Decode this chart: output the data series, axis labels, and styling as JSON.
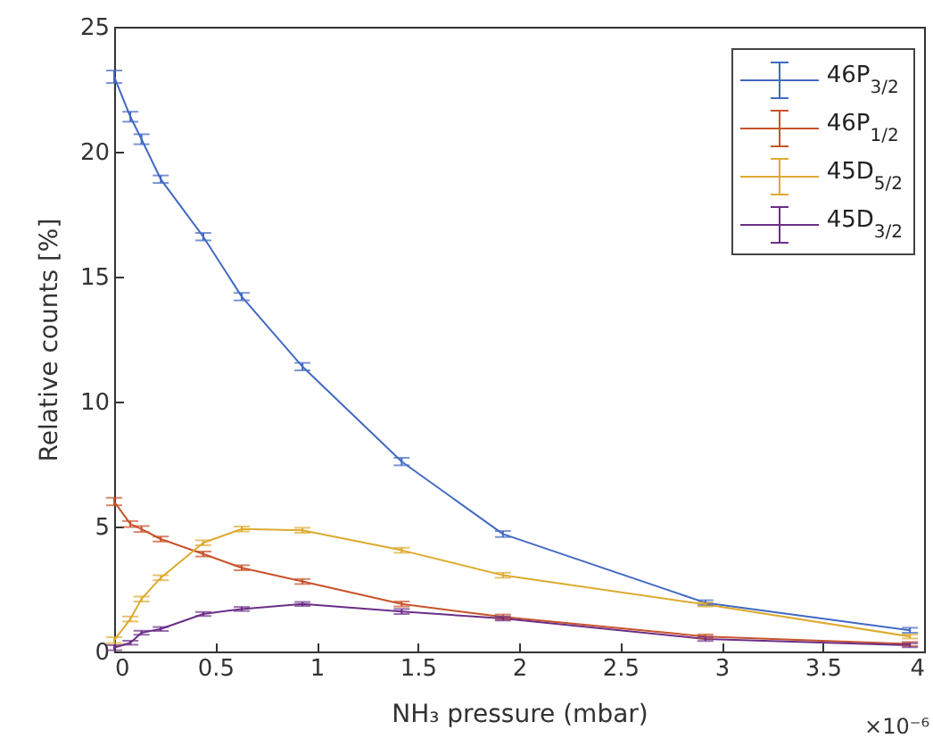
{
  "chart_data": {
    "type": "line",
    "xlabel": "NH₃ pressure (mbar)",
    "ylabel": "Relative counts [%]",
    "annotations": [
      "×10⁻⁶"
    ],
    "x": [
      0,
      0.08,
      0.135,
      0.23,
      0.44,
      0.63,
      0.93,
      1.42,
      1.92,
      2.92,
      3.93
    ],
    "xlim": [
      0,
      4
    ],
    "xticks": [
      0,
      0.5,
      1,
      1.5,
      2,
      2.5,
      3,
      3.5,
      4
    ],
    "ylim": [
      0,
      25
    ],
    "yticks": [
      0,
      5,
      10,
      15,
      20,
      25
    ],
    "grid": false,
    "legend": "top right",
    "marker": "none",
    "line_style": "solid",
    "series": [
      {
        "name": "46P$_{3/2}$",
        "color": "#4169c2",
        "values": [
          23.0,
          21.4,
          20.5,
          18.9,
          16.6,
          14.2,
          11.4,
          7.6,
          4.7,
          1.95,
          0.85
        ],
        "errors": [
          0.25,
          0.2,
          0.2,
          0.15,
          0.15,
          0.15,
          0.15,
          0.15,
          0.12,
          0.1,
          0.1
        ]
      },
      {
        "name": "46P$_{1/2}$",
        "color": "#c8532b",
        "values": [
          6.0,
          5.1,
          4.9,
          4.5,
          3.9,
          3.35,
          2.8,
          1.9,
          1.38,
          0.6,
          0.3
        ],
        "errors": [
          0.15,
          0.12,
          0.12,
          0.1,
          0.1,
          0.1,
          0.1,
          0.1,
          0.1,
          0.08,
          0.08
        ]
      },
      {
        "name": "45D$_{5/2}$",
        "color": "#ddaa2f",
        "values": [
          0.45,
          1.3,
          2.1,
          2.95,
          4.35,
          4.9,
          4.85,
          4.05,
          3.05,
          1.88,
          0.6
        ],
        "errors": [
          0.12,
          0.1,
          0.1,
          0.1,
          0.1,
          0.1,
          0.1,
          0.1,
          0.1,
          0.08,
          0.08
        ]
      },
      {
        "name": "45D$_{3/2}$",
        "color": "#6b2e87",
        "values": [
          0.15,
          0.35,
          0.75,
          0.9,
          1.5,
          1.7,
          1.9,
          1.6,
          1.32,
          0.5,
          0.25
        ],
        "errors": [
          0.1,
          0.08,
          0.08,
          0.08,
          0.08,
          0.08,
          0.08,
          0.1,
          0.08,
          0.08,
          0.08
        ]
      }
    ]
  }
}
